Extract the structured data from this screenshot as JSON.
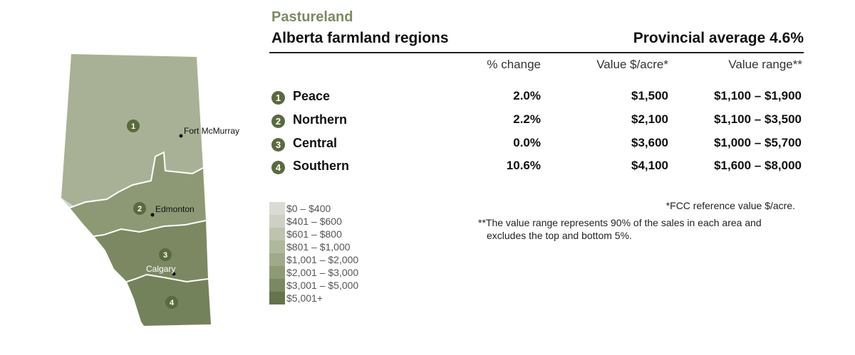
{
  "header": {
    "subtitle": "Pastureland",
    "title": "Alberta farmland regions",
    "provincial_average": "Provincial average 4.6%"
  },
  "columns": {
    "pct_change": "% change",
    "value": "Value $/acre*",
    "range": "Value range**"
  },
  "regions": [
    {
      "num": "1",
      "name": "Peace",
      "pct_change": "2.0%",
      "value": "$1,500",
      "range": "$1,100 – $1,900"
    },
    {
      "num": "2",
      "name": "Northern",
      "pct_change": "2.2%",
      "value": "$2,100",
      "range": "$1,100 – $3,500"
    },
    {
      "num": "3",
      "name": "Central",
      "pct_change": "0.0%",
      "value": "$3,600",
      "range": "$1,000 – $5,700"
    },
    {
      "num": "4",
      "name": "Southern",
      "pct_change": "10.6%",
      "value": "$4,100",
      "range": "$1,600 – $8,000"
    }
  ],
  "legend": [
    {
      "label": "$0 – $400",
      "color": "#dadbd3"
    },
    {
      "label": "$401 – $600",
      "color": "#cdd0c2"
    },
    {
      "label": "$601 – $800",
      "color": "#bdc3ad"
    },
    {
      "label": "$801 – $1,000",
      "color": "#afb79d"
    },
    {
      "label": "$1,001 – $2,000",
      "color": "#a0aa8a"
    },
    {
      "label": "$2,001 – $3,000",
      "color": "#8e9a74"
    },
    {
      "label": "$3,001 – $5,000",
      "color": "#7b8861"
    },
    {
      "label": "$5,001+",
      "color": "#65744b"
    }
  ],
  "notes": {
    "fcc": "*FCC reference value $/acre.",
    "range_line1": "**The value range represents 90% of the sales in each area and",
    "range_line2": "excludes the top and bottom 5%."
  },
  "map": {
    "cities": {
      "fort_mcmurray": "Fort McMurray",
      "edmonton": "Edmonton",
      "calgary": "Calgary"
    },
    "region_colors": {
      "peace": "#a8b196",
      "northern": "#8d9974",
      "central": "#7c8862",
      "southern": "#74825b",
      "mountains": "#d3d4d1"
    }
  }
}
